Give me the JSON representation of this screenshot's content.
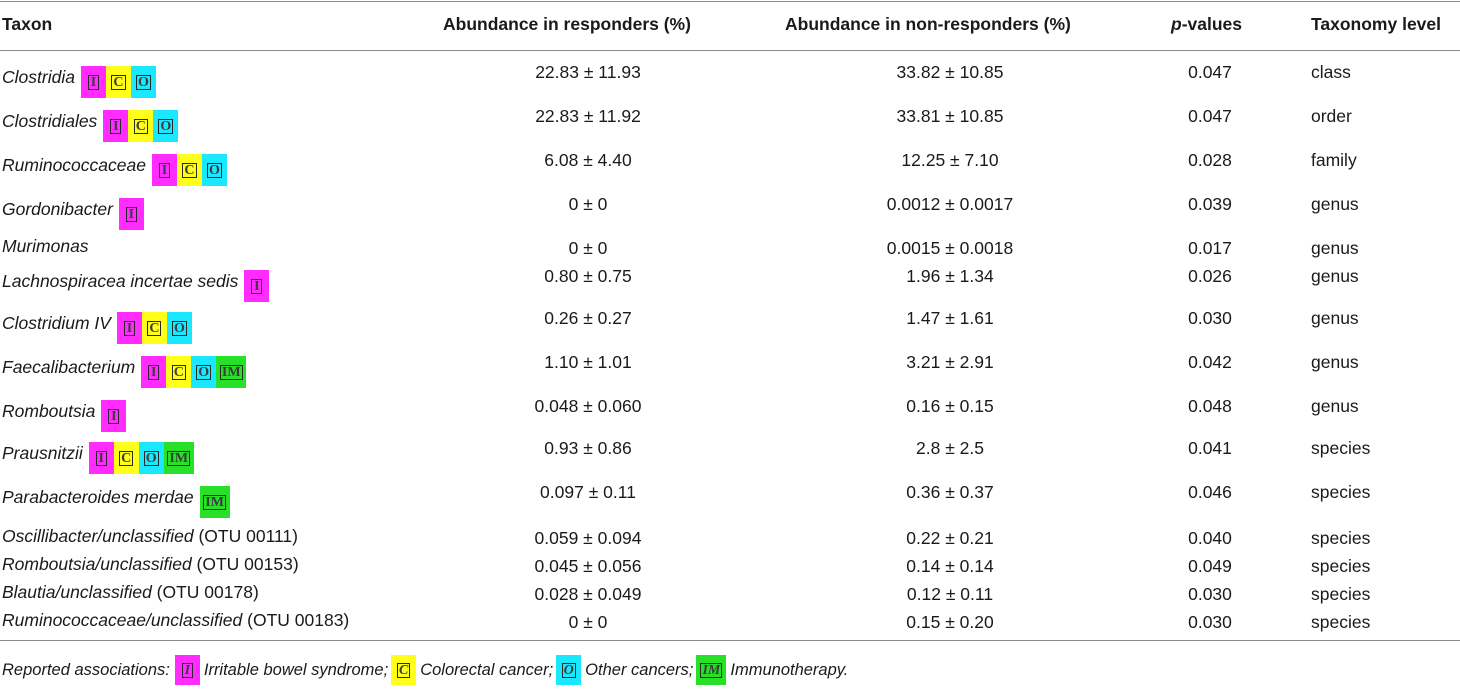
{
  "table": {
    "headers": {
      "taxon": "Taxon",
      "responders": "Abundance in responders (%)",
      "non_responders": "Abundance in non-responders (%)",
      "p_italic": "p",
      "p_rest": "-values",
      "level": "Taxonomy level"
    },
    "rows": [
      {
        "taxon": "Clostridia",
        "suffix": "",
        "badges": [
          "I",
          "C",
          "O"
        ],
        "responders": "22.83 ± 11.93",
        "non_responders": "33.82 ± 10.85",
        "p": "0.047",
        "level": "class"
      },
      {
        "taxon": "Clostridiales",
        "suffix": "",
        "badges": [
          "I",
          "C",
          "O"
        ],
        "responders": "22.83 ± 11.92",
        "non_responders": "33.81 ± 10.85",
        "p": "0.047",
        "level": "order"
      },
      {
        "taxon": "Ruminococcaceae",
        "suffix": "",
        "badges": [
          "I",
          "C",
          "O"
        ],
        "responders": "6.08 ± 4.40",
        "non_responders": "12.25 ± 7.10",
        "p": "0.028",
        "level": "family"
      },
      {
        "taxon": "Gordonibacter",
        "suffix": "",
        "badges": [
          "I"
        ],
        "responders": "0 ± 0",
        "non_responders": "0.0012 ± 0.0017",
        "p": "0.039",
        "level": "genus"
      },
      {
        "taxon": "Murimonas",
        "suffix": "",
        "badges": [],
        "responders": "0 ± 0",
        "non_responders": "0.0015 ± 0.0018",
        "p": "0.017",
        "level": "genus"
      },
      {
        "taxon": "Lachnospiracea incertae sedis",
        "suffix": "",
        "badges": [
          "I"
        ],
        "responders": "0.80 ± 0.75",
        "non_responders": "1.96 ± 1.34",
        "p": "0.026",
        "level": "genus"
      },
      {
        "taxon": "Clostridium IV",
        "suffix": "",
        "badges": [
          "I",
          "C",
          "O"
        ],
        "responders": "0.26 ± 0.27",
        "non_responders": "1.47 ± 1.61",
        "p": "0.030",
        "level": "genus"
      },
      {
        "taxon": "Faecalibacterium",
        "suffix": "",
        "badges": [
          "I",
          "C",
          "O",
          "IM"
        ],
        "responders": "1.10 ± 1.01",
        "non_responders": "3.21 ± 2.91",
        "p": "0.042",
        "level": "genus"
      },
      {
        "taxon": "Romboutsia",
        "suffix": "",
        "badges": [
          "I"
        ],
        "responders": "0.048 ± 0.060",
        "non_responders": "0.16 ± 0.15",
        "p": "0.048",
        "level": "genus"
      },
      {
        "taxon": "Prausnitzii",
        "suffix": "",
        "badges": [
          "I",
          "C",
          "O",
          "IM"
        ],
        "responders": "0.93 ± 0.86",
        "non_responders": "2.8 ± 2.5",
        "p": "0.041",
        "level": "species"
      },
      {
        "taxon": "Parabacteroides merdae",
        "suffix": "",
        "badges": [
          "IM"
        ],
        "responders": "0.097 ± 0.11",
        "non_responders": "0.36 ± 0.37",
        "p": "0.046",
        "level": "species"
      },
      {
        "taxon": "Oscillibacter/unclassified",
        "suffix": " (OTU 00111)",
        "badges": [],
        "responders": "0.059 ± 0.094",
        "non_responders": "0.22 ± 0.21",
        "p": "0.040",
        "level": "species"
      },
      {
        "taxon": "Romboutsia/unclassified",
        "suffix": " (OTU 00153)",
        "badges": [],
        "responders": "0.045 ± 0.056",
        "non_responders": "0.14 ± 0.14",
        "p": "0.049",
        "level": "species"
      },
      {
        "taxon": "Blautia/unclassified",
        "suffix": " (OTU 00178)",
        "badges": [],
        "responders": "0.028 ± 0.049",
        "non_responders": "0.12 ± 0.11",
        "p": "0.030",
        "level": "species"
      },
      {
        "taxon": "Ruminococcaceae/unclassified",
        "suffix": " (OTU 00183)",
        "badges": [],
        "responders": "0 ± 0",
        "non_responders": "0.15 ± 0.20",
        "p": "0.030",
        "level": "species"
      }
    ]
  },
  "badge_styles": {
    "I": {
      "letter": "I",
      "color": "#ff2bff"
    },
    "C": {
      "letter": "C",
      "color": "#ffff1a"
    },
    "O": {
      "letter": "O",
      "color": "#1ae8ff"
    },
    "IM": {
      "letter": "IM",
      "color": "#27e027"
    }
  },
  "footnote": {
    "intro": "Reported associations:",
    "items": [
      {
        "badge": "I",
        "text": "Irritable bowel syndrome;"
      },
      {
        "badge": "C",
        "text": "Colorectal cancer;"
      },
      {
        "badge": "O",
        "text": "Other cancers;"
      },
      {
        "badge": "IM",
        "text": "Immunotherapy."
      }
    ]
  }
}
